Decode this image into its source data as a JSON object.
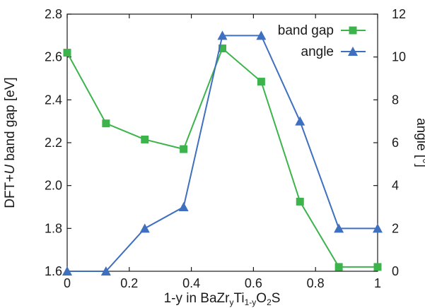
{
  "chart_data": {
    "type": "line",
    "xlabel_parts": {
      "prefix": "1-y in BaZr",
      "sub1": "y",
      "mid": "Ti",
      "sub2": "1-y",
      "mid2": "O",
      "sub3": "2",
      "suffix": "S"
    },
    "ylabel_left_parts": {
      "prefix": "DFT+",
      "italic": "U",
      "suffix": " band gap [eV]"
    },
    "ylabel_right": "angle [°]",
    "x_ticks": [
      "0",
      "0.2",
      "0.4",
      "0.6",
      "0.8",
      "1"
    ],
    "x_tick_values": [
      0,
      0.2,
      0.4,
      0.6,
      0.8,
      1.0
    ],
    "xlim": [
      0,
      1
    ],
    "y_left_ticks": [
      "1.6",
      "1.8",
      "2.0",
      "2.2",
      "2.4",
      "2.6",
      "2.8"
    ],
    "y_left_tick_values": [
      1.6,
      1.8,
      2.0,
      2.2,
      2.4,
      2.6,
      2.8
    ],
    "y_left_lim": [
      1.6,
      2.8
    ],
    "y_right_ticks": [
      "0",
      "2",
      "4",
      "6",
      "8",
      "10",
      "12"
    ],
    "y_right_tick_values": [
      0,
      2,
      4,
      6,
      8,
      10,
      12
    ],
    "y_right_lim": [
      0,
      12
    ],
    "series": [
      {
        "name": "band gap",
        "axis": "left",
        "marker": "square",
        "color": "#3cb44b",
        "x": [
          0,
          0.125,
          0.25,
          0.375,
          0.5,
          0.625,
          0.75,
          0.875,
          1.0
        ],
        "values": [
          2.62,
          2.29,
          2.215,
          2.17,
          2.64,
          2.485,
          1.925,
          1.62,
          1.62
        ]
      },
      {
        "name": "angle",
        "axis": "right",
        "marker": "triangle",
        "color": "#3f6fbf",
        "x": [
          0,
          0.125,
          0.25,
          0.375,
          0.5,
          0.625,
          0.75,
          0.875,
          1.0
        ],
        "values": [
          0,
          0,
          2,
          3,
          11,
          11,
          7,
          2,
          2
        ]
      }
    ],
    "legend_position": "top-right",
    "grid": false
  }
}
